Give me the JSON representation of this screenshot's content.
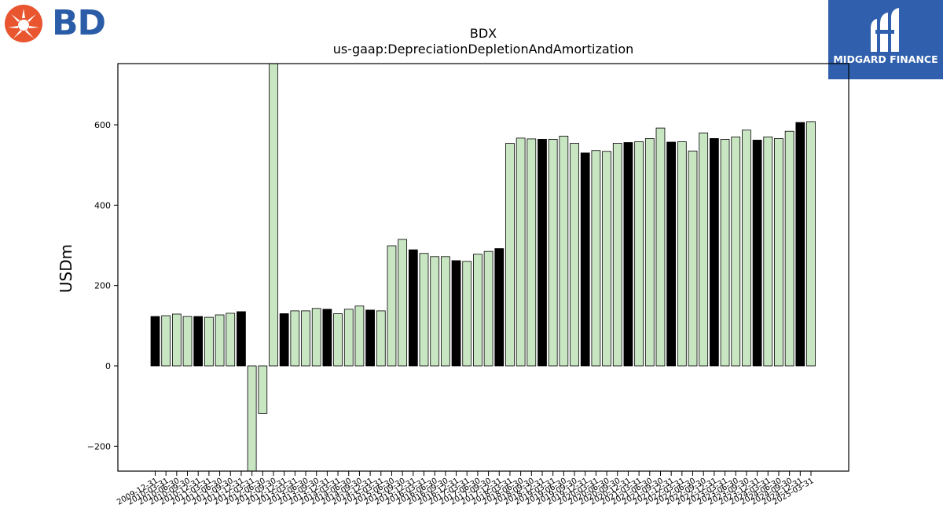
{
  "logos": {
    "left_text": "BD",
    "right_text": "MIDGARD FINANCE"
  },
  "colors": {
    "bar_light": "#c9e6c3",
    "bar_dark": "#000000",
    "bd_orange": "#e8552f",
    "bd_blue": "#2a5ca8",
    "midgard_bg": "#2f5fad"
  },
  "chart_data": {
    "type": "bar",
    "title": "BDX",
    "subtitle": "us-gaap:DepreciationDepletionAndAmortization",
    "xlabel": "",
    "ylabel": "USDm",
    "ylim": [
      -260,
      755
    ],
    "yticks": [
      -200,
      0,
      200,
      400,
      600
    ],
    "grid": false,
    "categories": [
      "2009-12-31",
      "2010-03-31",
      "2010-06-30",
      "2010-09-30",
      "2010-12-31",
      "2011-03-31",
      "2011-06-30",
      "2011-09-30",
      "2011-12-31",
      "2012-03-31",
      "2012-06-30",
      "2012-09-30",
      "2012-12-31",
      "2013-03-31",
      "2013-06-30",
      "2013-09-30",
      "2013-12-31",
      "2014-03-31",
      "2014-06-30",
      "2014-09-30",
      "2014-12-31",
      "2015-03-31",
      "2015-06-30",
      "2015-09-30",
      "2015-12-31",
      "2016-03-31",
      "2016-06-30",
      "2016-09-30",
      "2016-12-31",
      "2017-03-31",
      "2017-06-30",
      "2017-09-30",
      "2017-12-31",
      "2018-03-31",
      "2018-06-30",
      "2018-09-30",
      "2018-12-31",
      "2019-03-31",
      "2019-06-30",
      "2019-09-30",
      "2019-12-31",
      "2020-03-31",
      "2020-06-30",
      "2020-09-30",
      "2020-12-31",
      "2021-03-31",
      "2021-06-30",
      "2021-09-30",
      "2021-12-31",
      "2022-03-31",
      "2022-06-30",
      "2022-09-30",
      "2022-12-31",
      "2023-03-31",
      "2023-06-30",
      "2023-09-30",
      "2023-12-31",
      "2024-03-31",
      "2024-06-30",
      "2024-09-30",
      "2024-12-31",
      "2025-03-31"
    ],
    "values": [
      123,
      125,
      129,
      123,
      123,
      121,
      127,
      131,
      135,
      -265,
      -118,
      755,
      130,
      137,
      137,
      143,
      141,
      130,
      141,
      149,
      139,
      137,
      299,
      315,
      289,
      280,
      272,
      272,
      262,
      260,
      278,
      285,
      292,
      554,
      567,
      565,
      564,
      564,
      572,
      554,
      530,
      536,
      534,
      554,
      556,
      558,
      566,
      592,
      557,
      558,
      535,
      580,
      566,
      564,
      570,
      587,
      562,
      570,
      566,
      584,
      606,
      608
    ],
    "dark_indices": [
      0,
      4,
      8,
      12,
      16,
      20,
      24,
      28,
      32,
      36,
      40,
      44,
      48,
      52,
      56,
      60
    ]
  }
}
